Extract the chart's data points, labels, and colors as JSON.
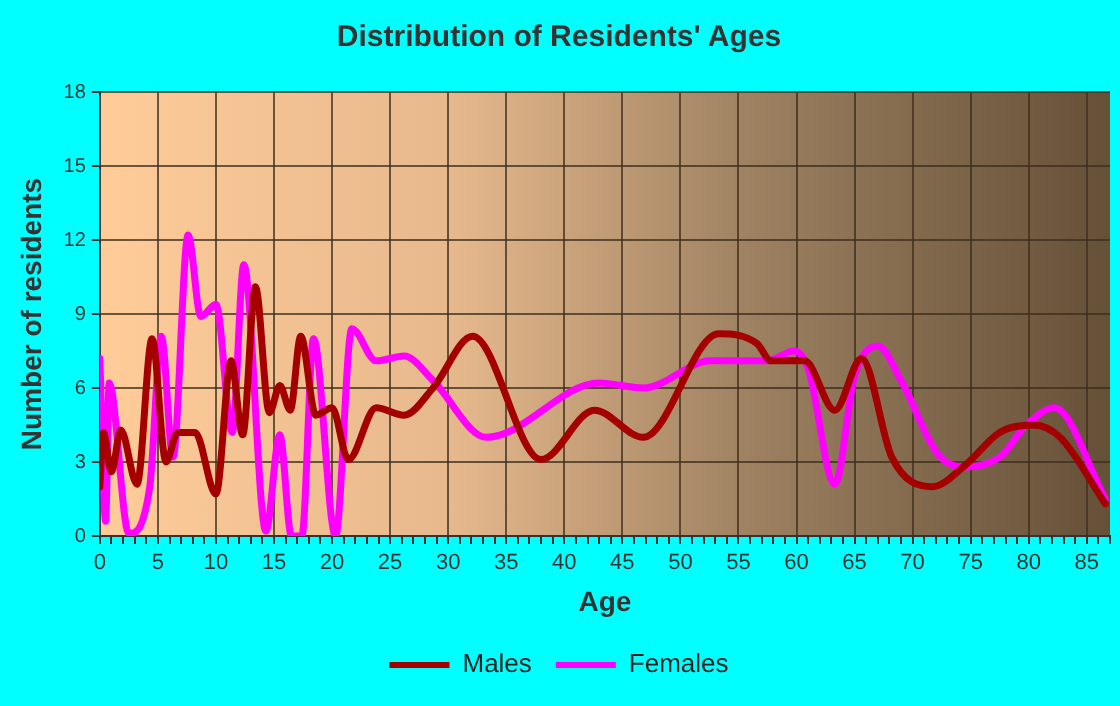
{
  "chart_data": {
    "type": "line",
    "title": "Distribution of Residents' Ages",
    "xlabel": "Age",
    "ylabel": "Number of residents",
    "xlim": [
      0,
      87
    ],
    "ylim": [
      0,
      18
    ],
    "xticks": [
      0,
      {
        "value": 1,
        "label": null
      },
      {
        "value": 2,
        "label": null
      },
      {
        "value": 3,
        "label": null
      },
      {
        "value": 4,
        "label": null
      },
      5,
      {
        "value": 6,
        "label": null
      },
      {
        "value": 7,
        "label": null
      },
      {
        "value": 8,
        "label": null
      },
      {
        "value": 9,
        "label": null
      },
      10,
      {
        "value": 11,
        "label": null
      },
      {
        "value": 12,
        "label": null
      },
      {
        "value": 13,
        "label": null
      },
      {
        "value": 14,
        "label": null
      },
      15,
      {
        "value": 16,
        "label": null
      },
      {
        "value": 17,
        "label": null
      },
      {
        "value": 18,
        "label": null
      },
      {
        "value": 19,
        "label": null
      },
      20,
      {
        "value": 21,
        "label": null
      },
      {
        "value": 22,
        "label": null
      },
      {
        "value": 23,
        "label": null
      },
      {
        "value": 24,
        "label": null
      },
      25,
      {
        "value": 26,
        "label": null
      },
      {
        "value": 27,
        "label": null
      },
      {
        "value": 28,
        "label": null
      },
      {
        "value": 29,
        "label": null
      },
      30,
      {
        "value": 31,
        "label": null
      },
      {
        "value": 32,
        "label": null
      },
      {
        "value": 33,
        "label": null
      },
      {
        "value": 34,
        "label": null
      },
      35,
      {
        "value": 36,
        "label": null
      },
      {
        "value": 37,
        "label": null
      },
      {
        "value": 38,
        "label": null
      },
      {
        "value": 39,
        "label": null
      },
      40,
      {
        "value": 41,
        "label": null
      },
      {
        "value": 42,
        "label": null
      },
      {
        "value": 43,
        "label": null
      },
      {
        "value": 44,
        "label": null
      },
      45,
      {
        "value": 46,
        "label": null
      },
      {
        "value": 47,
        "label": null
      },
      {
        "value": 48,
        "label": null
      },
      {
        "value": 49,
        "label": null
      },
      50,
      {
        "value": 51,
        "label": null
      },
      {
        "value": 52,
        "label": null
      },
      {
        "value": 53,
        "label": null
      },
      {
        "value": 54,
        "label": null
      },
      55,
      {
        "value": 56,
        "label": null
      },
      {
        "value": 57,
        "label": null
      },
      {
        "value": 58,
        "label": null
      },
      {
        "value": 59,
        "label": null
      },
      60,
      {
        "value": 61,
        "label": null
      },
      {
        "value": 62,
        "label": null
      },
      {
        "value": 63,
        "label": null
      },
      {
        "value": 64,
        "label": null
      },
      65,
      {
        "value": 66,
        "label": null
      },
      {
        "value": 67,
        "label": null
      },
      {
        "value": 68,
        "label": null
      },
      {
        "value": 69,
        "label": null
      },
      70,
      {
        "value": 71,
        "label": null
      },
      {
        "value": 72,
        "label": null
      },
      {
        "value": 73,
        "label": null
      },
      {
        "value": 74,
        "label": null
      },
      75,
      {
        "value": 76,
        "label": null
      },
      {
        "value": 77,
        "label": null
      },
      {
        "value": 78,
        "label": null
      },
      {
        "value": 79,
        "label": null
      },
      80,
      {
        "value": 81,
        "label": null
      },
      {
        "value": 82,
        "label": null
      },
      {
        "value": 83,
        "label": null
      },
      {
        "value": 84,
        "label": null
      },
      85,
      {
        "value": 86,
        "label": null
      },
      {
        "value": 87,
        "label": null
      }
    ],
    "yticks": [
      0,
      3,
      6,
      9,
      12,
      15,
      18
    ],
    "grid": true,
    "legend": "bottom",
    "marker": "none",
    "line_style": "solid",
    "series": [
      {
        "name": "Males",
        "color": "#a50000",
        "x": [
          0,
          0.3,
          1,
          1.8,
          3.2,
          4.5,
          5.7,
          6.7,
          8.2,
          10,
          11.3,
          12.3,
          13.4,
          14.6,
          15.5,
          16.4,
          17.3,
          18.6,
          20,
          21.4,
          23.8,
          26.2,
          28.7,
          32.1,
          38,
          42.6,
          46.8,
          53.3,
          56.6,
          57.8,
          60.7,
          63.3,
          65.6,
          68.2,
          71.7,
          74.6,
          77.5,
          80.4,
          82.7,
          86.6
        ],
        "values": [
          2,
          4.2,
          2.6,
          4.3,
          2.1,
          8,
          3,
          4.2,
          4.2,
          1.7,
          7.1,
          4.1,
          10.1,
          5,
          6.1,
          5.1,
          8.1,
          4.9,
          5.2,
          3.1,
          5.2,
          4.9,
          6,
          8.1,
          3.1,
          5.1,
          4,
          8.2,
          7.8,
          7.1,
          7.1,
          5.1,
          7.2,
          3.2,
          2,
          2.9,
          4.2,
          4.5,
          4,
          1.3
        ]
      },
      {
        "name": "Females",
        "color": "#ff00ff",
        "x": [
          0,
          0.5,
          0.8,
          2.5,
          4.3,
          5.3,
          6.3,
          7.6,
          8.7,
          10,
          11.4,
          12.4,
          14.3,
          15.5,
          16.5,
          17.4,
          18.4,
          20.3,
          21.7,
          23.8,
          26.2,
          28.7,
          33.3,
          43,
          46.8,
          52.6,
          57.5,
          59.8,
          61,
          63.3,
          65,
          67,
          69,
          72.2,
          74.6,
          77.5,
          79.8,
          82.2,
          86.6
        ],
        "values": [
          7.2,
          0.6,
          6.2,
          0.1,
          2,
          8.1,
          3.2,
          12.2,
          8.9,
          9.4,
          4.2,
          11,
          0.2,
          4.1,
          0,
          0,
          8,
          0,
          8.4,
          7.1,
          7.3,
          6.3,
          4,
          6.2,
          6,
          7.1,
          7.1,
          7.5,
          6.8,
          2.1,
          6.5,
          7.7,
          6.3,
          3.3,
          2.8,
          3.2,
          4.5,
          5.2,
          1.5
        ]
      }
    ]
  }
}
